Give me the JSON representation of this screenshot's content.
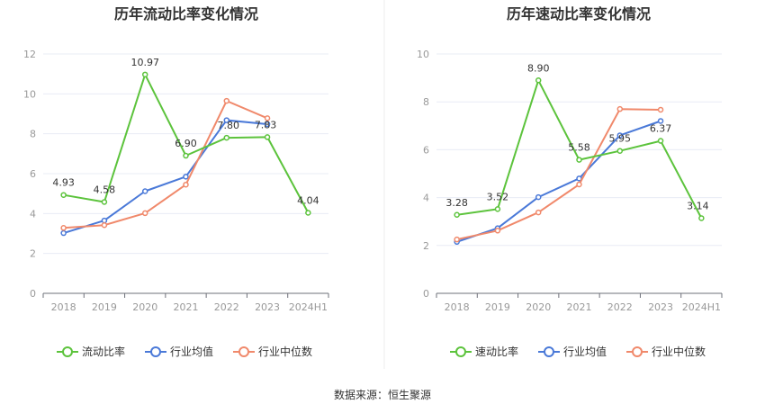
{
  "source": "数据来源：恒生聚源",
  "colors": {
    "primary": "#5cc33c",
    "average": "#4a79d8",
    "median": "#f0896b",
    "grid": "#e8ecf5",
    "axis": "#6e7079"
  },
  "chart_data": [
    {
      "type": "line",
      "title": "历年流动比率变化情况",
      "categories": [
        "2018",
        "2019",
        "2020",
        "2021",
        "2022",
        "2023",
        "2024H1"
      ],
      "ylim": [
        0,
        12
      ],
      "yticks": [
        0,
        2,
        4,
        6,
        8,
        10,
        12
      ],
      "ytick_labels": [
        "0",
        "2",
        "4",
        "6",
        "8",
        "10",
        "12"
      ],
      "legend_position": "bottom",
      "series": [
        {
          "name": "流动比率",
          "color_key": "primary",
          "values": [
            4.93,
            4.58,
            10.97,
            6.9,
            7.8,
            7.83,
            4.04
          ],
          "labels": [
            "4.93",
            "4.58",
            "10.97",
            "6.90",
            "7.80",
            "7.83",
            "4.04"
          ]
        },
        {
          "name": "行业均值",
          "color_key": "average",
          "values": [
            3.02,
            3.65,
            5.12,
            5.85,
            8.68,
            8.48,
            null
          ]
        },
        {
          "name": "行业中位数",
          "color_key": "median",
          "values": [
            3.28,
            3.42,
            4.02,
            5.45,
            9.65,
            8.78,
            null
          ]
        }
      ]
    },
    {
      "type": "line",
      "title": "历年速动比率变化情况",
      "categories": [
        "2018",
        "2019",
        "2020",
        "2021",
        "2022",
        "2023",
        "2024H1"
      ],
      "ylim": [
        0,
        10
      ],
      "yticks": [
        0,
        2,
        4,
        6,
        8,
        10
      ],
      "ytick_labels": [
        "0",
        "2",
        "4",
        "6",
        "8",
        "10"
      ],
      "legend_position": "bottom",
      "series": [
        {
          "name": "速动比率",
          "color_key": "primary",
          "values": [
            3.28,
            3.52,
            8.9,
            5.58,
            5.95,
            6.37,
            3.14
          ],
          "labels": [
            "3.28",
            "3.52",
            "8.90",
            "5.58",
            "5.95",
            "6.37",
            "3.14"
          ]
        },
        {
          "name": "行业均值",
          "color_key": "average",
          "values": [
            2.15,
            2.72,
            4.02,
            4.8,
            6.6,
            7.2,
            null
          ]
        },
        {
          "name": "行业中位数",
          "color_key": "median",
          "values": [
            2.25,
            2.62,
            3.38,
            4.55,
            7.7,
            7.67,
            null
          ]
        }
      ]
    }
  ]
}
